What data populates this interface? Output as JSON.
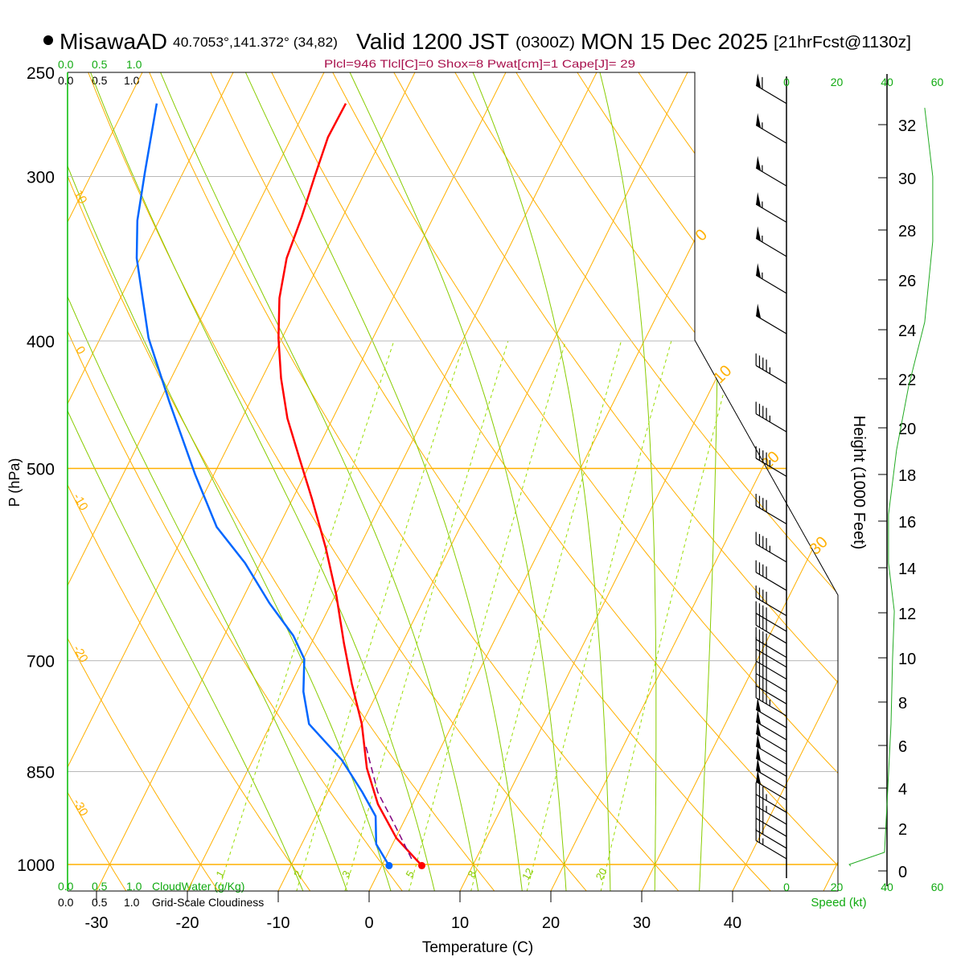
{
  "header": {
    "station": "MisawaAD",
    "coords": "40.7053°,141.372° (34,82)",
    "valid": "Valid 1200 JST",
    "utc": "(0300Z)",
    "date": "MON 15 Dec 2025",
    "forecast": "[21hrFcst@1130z]"
  },
  "indices": "Plcl=946 Tlcl[C]=0 Shox=8 Pwat[cm]=1 Cape[J]= 29",
  "cloud_scale": {
    "ticks": [
      "0.0",
      "0.5",
      "1.0"
    ],
    "cloudwater_label": "CloudWater (g/Kg)",
    "cloudiness_label": "Grid-Scale Cloudiness"
  },
  "chart_data": {
    "type": "line",
    "title": "MisawaAD Skew-T Valid 1200 JST MON 15 Dec 2025",
    "xlabel": "Temperature (C)",
    "ylabel": "P (hPa)",
    "y2label": "Height (1000 Feet)",
    "speed_label": "Speed (kt)",
    "pressure_ticks": [
      250,
      300,
      400,
      500,
      700,
      850,
      1000
    ],
    "temp_ticks": [
      -30,
      -20,
      -10,
      0,
      10,
      20,
      30,
      40
    ],
    "height_ticks": [
      0,
      2,
      4,
      6,
      8,
      10,
      12,
      14,
      16,
      18,
      20,
      22,
      24,
      26,
      28,
      30,
      32
    ],
    "speed_ticks": [
      0,
      20,
      40,
      60
    ],
    "ylim": [
      1000,
      250
    ],
    "isotherm_labels": [
      0,
      10,
      20,
      30
    ],
    "dry_adiabat_labels": [
      10,
      0,
      -10,
      -20,
      -30
    ],
    "mixing_ratio_labels": [
      1,
      2,
      3,
      5,
      8,
      12,
      20
    ],
    "series": [
      {
        "name": "temperature",
        "color": "#ff0000",
        "points": [
          [
            1002,
            4.4
          ],
          [
            955,
            0.1
          ],
          [
            900,
            -3.8
          ],
          [
            845,
            -7.0
          ],
          [
            782,
            -10.0
          ],
          [
            729,
            -13.3
          ],
          [
            679,
            -16.4
          ],
          [
            624,
            -19.9
          ],
          [
            574,
            -23.7
          ],
          [
            527,
            -27.9
          ],
          [
            491,
            -31.5
          ],
          [
            458,
            -35.0
          ],
          [
            427,
            -37.9
          ],
          [
            398,
            -40.4
          ],
          [
            371,
            -42.5
          ],
          [
            346,
            -43.9
          ],
          [
            322,
            -44.5
          ],
          [
            300,
            -45.3
          ],
          [
            280,
            -46.0
          ],
          [
            264,
            -45.9
          ]
        ]
      },
      {
        "name": "dewpoint",
        "color": "#0066ff",
        "points": [
          [
            1002,
            0.8
          ],
          [
            965,
            -1.8
          ],
          [
            919,
            -3.4
          ],
          [
            881,
            -6.2
          ],
          [
            833,
            -10.2
          ],
          [
            782,
            -15.8
          ],
          [
            739,
            -18.2
          ],
          [
            698,
            -19.9
          ],
          [
            670,
            -22.4
          ],
          [
            633,
            -26.8
          ],
          [
            590,
            -31.7
          ],
          [
            554,
            -36.8
          ],
          [
            505,
            -42.1
          ],
          [
            445,
            -48.9
          ],
          [
            398,
            -54.7
          ],
          [
            346,
            -60.4
          ],
          [
            324,
            -62.4
          ],
          [
            298,
            -64.2
          ],
          [
            264,
            -66.7
          ]
        ]
      },
      {
        "name": "parcel",
        "color": "#800080",
        "points": [
          [
            990,
            2.9
          ],
          [
            926,
            -1.3
          ],
          [
            881,
            -4.5
          ],
          [
            810,
            -8.5
          ]
        ]
      }
    ],
    "wind_speed_profile": [
      [
        1003,
        0
      ],
      [
        1000,
        25
      ],
      [
        979,
        39
      ],
      [
        900,
        40
      ],
      [
        782,
        41.6
      ],
      [
        698,
        42.2
      ],
      [
        642,
        42.9
      ],
      [
        590,
        40.6
      ],
      [
        542,
        40.6
      ],
      [
        484,
        43.8
      ],
      [
        433,
        48.6
      ],
      [
        387,
        55
      ],
      [
        336,
        58.2
      ],
      [
        300,
        58.2
      ],
      [
        266,
        55
      ]
    ],
    "wind_barbs": [
      [
        264,
        60
      ],
      [
        283,
        55
      ],
      [
        305,
        55
      ],
      [
        325,
        55
      ],
      [
        345,
        55
      ],
      [
        368,
        55
      ],
      [
        395,
        50
      ],
      [
        431,
        45
      ],
      [
        469,
        45
      ],
      [
        507,
        45
      ],
      [
        551,
        40
      ],
      [
        589,
        45
      ],
      [
        619,
        40
      ],
      [
        647,
        40
      ],
      [
        665,
        40
      ],
      [
        679,
        40
      ],
      [
        696,
        40
      ],
      [
        708,
        40
      ],
      [
        723,
        40
      ],
      [
        739,
        40
      ],
      [
        755,
        40
      ],
      [
        771,
        45
      ],
      [
        787,
        50
      ],
      [
        804,
        50
      ],
      [
        821,
        50
      ],
      [
        839,
        50
      ],
      [
        857,
        50
      ],
      [
        875,
        50
      ],
      [
        893,
        50
      ],
      [
        913,
        35
      ],
      [
        932,
        35
      ],
      [
        952,
        30
      ],
      [
        972,
        30
      ],
      [
        990,
        25
      ]
    ]
  }
}
